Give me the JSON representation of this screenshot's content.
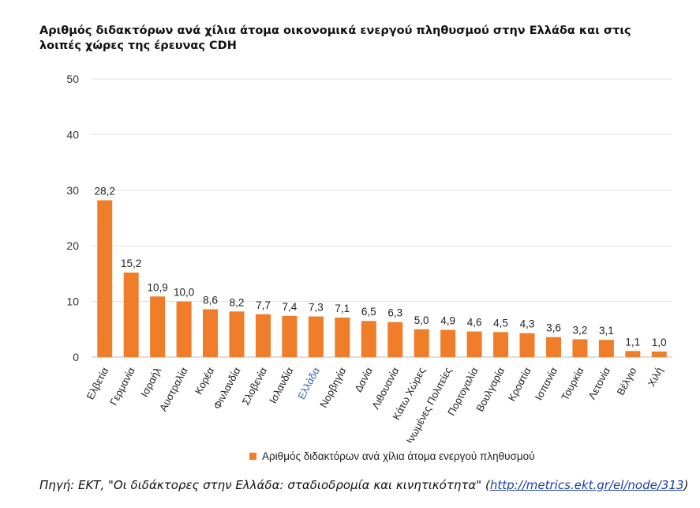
{
  "chart_data": {
    "type": "bar",
    "title": "Αριθμός διδακτόρων ανά χίλια άτομα οικονομικά ενεργού πληθυσμού στην Ελλάδα και στις λοιπές χώρες  της έρευνας CDH",
    "categories": [
      "Ελβετία",
      "Γερμανία",
      "Ισραήλ",
      "Αυστραλία",
      "Κορέα",
      "Φινλανδία",
      "Σλοβενία",
      "Ισλανδία",
      "Ελλάδα",
      "Νορβηγία",
      "Δανία",
      "Λιθουανία",
      "Κάτω Χώρες",
      "Ηνωμένες Πολιτείες",
      "Πορτογαλία",
      "Βουλγαρία",
      "Κροατία",
      "Ισπανία",
      "Τουρκία",
      "Λετονία",
      "Βέλγιο",
      "Χιλή"
    ],
    "values": [
      28.2,
      15.2,
      10.9,
      10.0,
      8.6,
      8.2,
      7.7,
      7.4,
      7.3,
      7.1,
      6.5,
      6.3,
      5.0,
      4.9,
      4.6,
      4.5,
      4.3,
      3.6,
      3.2,
      3.1,
      1.1,
      1.0
    ],
    "value_labels": [
      "28,2",
      "15,2",
      "10,9",
      "10,0",
      "8,6",
      "8,2",
      "7,7",
      "7,4",
      "7,3",
      "7,1",
      "6,5",
      "6,3",
      "5,0",
      "4,9",
      "4,6",
      "4,5",
      "4,3",
      "3,6",
      "3,2",
      "3,1",
      "1,1",
      "1,0"
    ],
    "highlighted_category": "Ελλάδα",
    "ylim": [
      0,
      50
    ],
    "yticks": [
      "0",
      "10",
      "20",
      "30",
      "40",
      "50"
    ],
    "grid": true,
    "legend_position": "bottom",
    "series": [
      {
        "name": "Αριθμός διδακτόρων ανά χίλια άτομα ενεργού πληθυσμού"
      }
    ],
    "bar_color": "#f07d2a",
    "highlight_label_color": "#3a63b0"
  },
  "source": {
    "prefix": "Πηγή: ΕΚΤ, \"Οι διδάκτορες στην Ελλάδα: σταδιοδρομία και κινητικότητα\" (",
    "link": "http://metrics.ekt.gr/el/node/313",
    "suffix": ")"
  }
}
